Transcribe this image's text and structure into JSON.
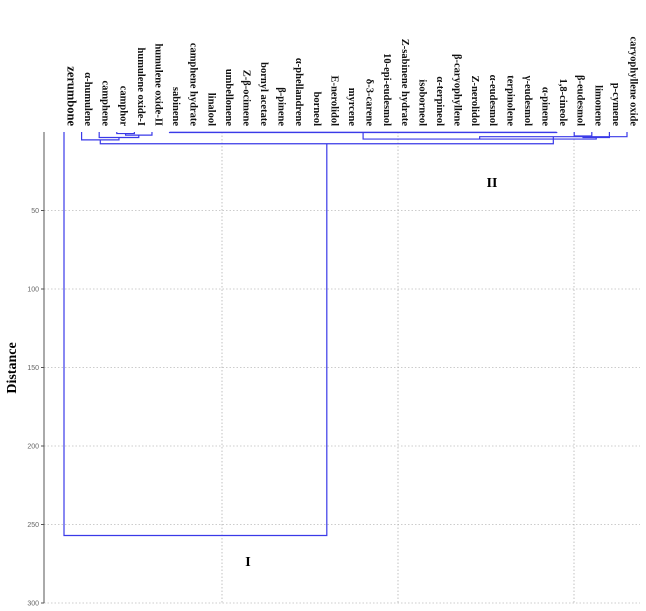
{
  "chart_data": {
    "type": "dendrogram",
    "ylabel": "Distance",
    "ylim": [
      0,
      300
    ],
    "yticks": [
      50,
      100,
      150,
      200,
      250,
      300
    ],
    "grid": true,
    "leaves": [
      {
        "label": "zerumbone",
        "style": "big"
      },
      {
        "label": "α-humulene"
      },
      {
        "label": "camphene"
      },
      {
        "label": "camphor"
      },
      {
        "label": "humulene oxide-I"
      },
      {
        "label": "humulene oxide-II"
      },
      {
        "label": "sabinene"
      },
      {
        "label": "camphene hydrate"
      },
      {
        "label": "linalool"
      },
      {
        "label": "umbellonene"
      },
      {
        "label": "Z-β-ocimene"
      },
      {
        "label": "bornyl acetate"
      },
      {
        "label": "β-pinene"
      },
      {
        "label": "α-phellandrene"
      },
      {
        "label": "borneol"
      },
      {
        "label": "E-nerolidol"
      },
      {
        "label": "myrcene"
      },
      {
        "label": "δ-3-carene"
      },
      {
        "label": "10-epi-eudesmol"
      },
      {
        "label": "Z-sabinene hydrate"
      },
      {
        "label": "isoborneol"
      },
      {
        "label": "α-terpineol"
      },
      {
        "label": "β-caryophyllene"
      },
      {
        "label": "Z-nerolidol"
      },
      {
        "label": "α-eudesmol"
      },
      {
        "label": "terpinolene"
      },
      {
        "label": "γ-eudesmol"
      },
      {
        "label": "α-pinene"
      },
      {
        "label": "1,8-cineole"
      },
      {
        "label": "β-eudesmol"
      },
      {
        "label": "limonene"
      },
      {
        "label": "p-cymene"
      },
      {
        "label": "caryophyllene oxide"
      }
    ],
    "merges": [
      {
        "id": "m1",
        "left": 3,
        "right": 4,
        "height": 1.0
      },
      {
        "id": "m2",
        "left": "m1",
        "right": 5,
        "height": 2.0
      },
      {
        "id": "m3",
        "left": 2,
        "right": "m2",
        "height": 3.5
      },
      {
        "id": "m4",
        "left": 1,
        "right": "m3",
        "height": 5.0
      },
      {
        "id": "m5",
        "left": 6,
        "right": 28,
        "height": 0.3
      },
      {
        "id": "m6",
        "left": 29,
        "right": 30,
        "height": 2.5
      },
      {
        "id": "m7",
        "left": "m6",
        "right": 31,
        "height": 3.5
      },
      {
        "id": "m8",
        "left": "m5",
        "right": "m7",
        "height": 4.5
      },
      {
        "id": "m9",
        "left": "m8",
        "right": 32,
        "height": 3.0
      },
      {
        "id": "m10",
        "left": "m4",
        "right": "m9",
        "height": 7.5
      },
      {
        "id": "m11",
        "left": 0,
        "right": "m10",
        "height": 257
      }
    ],
    "clusters": [
      {
        "label": "I"
      },
      {
        "label": "II"
      }
    ]
  }
}
